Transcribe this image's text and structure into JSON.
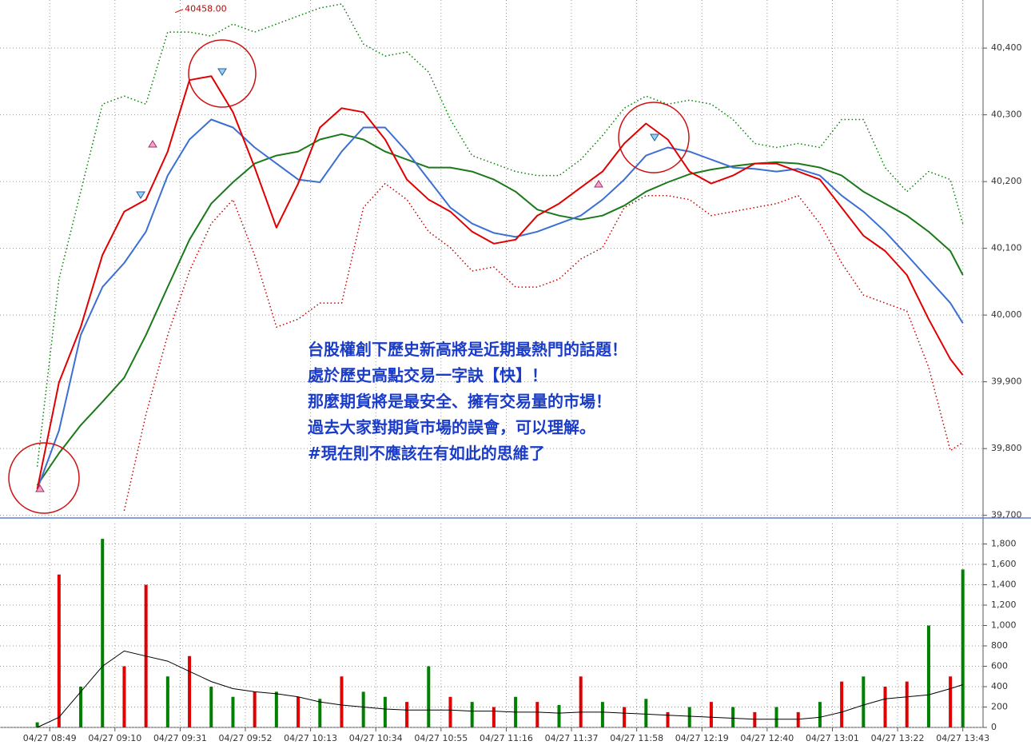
{
  "chart_data": [
    {
      "type": "line",
      "xlim": [
        "04/27 08:33",
        "04/27 13:49"
      ],
      "ylim": [
        39696,
        40472
      ],
      "yticks": [
        {
          "value": 39700,
          "label": "39,700"
        },
        {
          "value": 39800,
          "label": "39,800"
        },
        {
          "value": 39900,
          "label": "39,900"
        },
        {
          "value": 40000,
          "label": "40,000"
        },
        {
          "value": 40100,
          "label": "40,100"
        },
        {
          "value": 40200,
          "label": "40,200"
        },
        {
          "value": 40300,
          "label": "40,300"
        },
        {
          "value": 40400,
          "label": "40,400"
        }
      ],
      "grid": true,
      "x": [
        "04/27 08:45",
        "04/27 08:52",
        "04/27 08:59",
        "04/27 09:06",
        "04/27 09:13",
        "04/27 09:20",
        "04/27 09:27",
        "04/27 09:34",
        "04/27 09:41",
        "04/27 09:48",
        "04/27 09:55",
        "04/27 10:02",
        "04/27 10:09",
        "04/27 10:16",
        "04/27 10:23",
        "04/27 10:30",
        "04/27 10:37",
        "04/27 10:44",
        "04/27 10:51",
        "04/27 10:58",
        "04/27 11:05",
        "04/27 11:12",
        "04/27 11:19",
        "04/27 11:26",
        "04/27 11:33",
        "04/27 11:40",
        "04/27 11:47",
        "04/27 11:54",
        "04/27 12:01",
        "04/27 12:08",
        "04/27 12:15",
        "04/27 12:22",
        "04/27 12:29",
        "04/27 12:36",
        "04/27 12:43",
        "04/27 12:50",
        "04/27 12:57",
        "04/27 13:04",
        "04/27 13:11",
        "04/27 13:18",
        "04/27 13:25",
        "04/27 13:32",
        "04/27 13:39",
        "04/27 13:43"
      ],
      "series": [
        {
          "color": "#008000",
          "width": 2,
          "dotted": true,
          "values": [
            39773,
            40054,
            40185,
            40316,
            40328,
            40316,
            40424,
            40424,
            40418,
            40436,
            40424,
            40436,
            40448,
            40460,
            40466,
            40406,
            40388,
            40394,
            40364,
            40293,
            40239,
            40227,
            40215,
            40209,
            40209,
            40233,
            40269,
            40310,
            40328,
            40316,
            40322,
            40316,
            40293,
            40257,
            40251,
            40257,
            40251,
            40293,
            40293,
            40221,
            40185,
            40215,
            40203,
            40137
          ]
        },
        {
          "color": "#c00000",
          "width": 2,
          "dotted": true,
          "values": [
            null,
            null,
            null,
            null,
            39707,
            39851,
            39970,
            40066,
            40137,
            40173,
            40089,
            39982,
            39994,
            40018,
            40018,
            40161,
            40197,
            40173,
            40125,
            40101,
            40066,
            40072,
            40042,
            40042,
            40054,
            40084,
            40101,
            40161,
            40179,
            40179,
            40173,
            40149,
            40155,
            40161,
            40167,
            40179,
            40137,
            40078,
            40030,
            40018,
            40006,
            39922,
            39797,
            39809
          ]
        },
        {
          "color": "#1a7a1a",
          "width": 2,
          "dotted": false,
          "values": [
            39745,
            39793,
            39835,
            39870,
            39906,
            39970,
            40042,
            40113,
            40167,
            40199,
            40227,
            40239,
            40245,
            40263,
            40271,
            40263,
            40245,
            40233,
            40221,
            40221,
            40215,
            40203,
            40185,
            40158,
            40149,
            40143,
            40149,
            40164,
            40185,
            40199,
            40211,
            40218,
            40223,
            40227,
            40229,
            40227,
            40221,
            40209,
            40185,
            40167,
            40149,
            40125,
            40096,
            40060
          ]
        },
        {
          "color": "#3b6fd4",
          "width": 2,
          "dotted": false,
          "values": [
            39739,
            39827,
            39970,
            40042,
            40078,
            40125,
            40209,
            40263,
            40293,
            40281,
            40251,
            40227,
            40203,
            40199,
            40245,
            40281,
            40281,
            40245,
            40203,
            40161,
            40137,
            40123,
            40117,
            40125,
            40137,
            40149,
            40173,
            40203,
            40239,
            40251,
            40245,
            40233,
            40221,
            40219,
            40215,
            40219,
            40209,
            40179,
            40155,
            40125,
            40090,
            40054,
            40018,
            39988
          ]
        },
        {
          "color": "#e00000",
          "width": 2,
          "dotted": false,
          "values": [
            39739,
            39899,
            39982,
            40090,
            40155,
            40173,
            40245,
            40352,
            40358,
            40304,
            40221,
            40131,
            40197,
            40281,
            40310,
            40304,
            40263,
            40203,
            40173,
            40155,
            40125,
            40107,
            40113,
            40149,
            40167,
            40191,
            40215,
            40257,
            40287,
            40263,
            40215,
            40197,
            40209,
            40227,
            40227,
            40215,
            40203,
            40161,
            40119,
            40096,
            40060,
            39994,
            39934,
            39910
          ]
        }
      ],
      "high_label": {
        "value": 40458,
        "label": "40458.00",
        "x": "04/27 09:33"
      },
      "annotation_lines": [
        "台股權創下歷史新高將是近期最熱門的話題！",
        "處於歷史高點交易一字訣【快】！",
        "那麼期貨將是最安全、擁有交易量的市場！",
        "過去大家對期貨市場的誤會，可以理解。",
        "#現在則不應該在有如此的思維了"
      ],
      "annotation_color": "#1a3cc8"
    },
    {
      "type": "bar",
      "xlim": [
        "04/27 08:33",
        "04/27 13:49"
      ],
      "ylim": [
        0,
        2000
      ],
      "yticks": [
        0,
        200,
        400,
        600,
        800,
        {
          "value": 1000,
          "label": "1,000"
        },
        {
          "value": 1200,
          "label": "1,200"
        },
        {
          "value": 1400,
          "label": "1,400"
        },
        {
          "value": 1600,
          "label": "1,600"
        },
        {
          "value": 1800,
          "label": "1,800"
        }
      ],
      "xticks": [
        "04/27 08:49",
        "04/27 09:10",
        "04/27 09:31",
        "04/27 09:52",
        "04/27 10:13",
        "04/27 10:34",
        "04/27 10:55",
        "04/27 11:16",
        "04/27 11:37",
        "04/27 11:58",
        "04/27 12:19",
        "04/27 12:40",
        "04/27 13:01",
        "04/27 13:22",
        "04/27 13:43"
      ],
      "grid": true,
      "x": [
        "04/27 08:45",
        "04/27 08:52",
        "04/27 08:59",
        "04/27 09:06",
        "04/27 09:13",
        "04/27 09:20",
        "04/27 09:27",
        "04/27 09:34",
        "04/27 09:41",
        "04/27 09:48",
        "04/27 09:55",
        "04/27 10:02",
        "04/27 10:09",
        "04/27 10:16",
        "04/27 10:23",
        "04/27 10:30",
        "04/27 10:37",
        "04/27 10:44",
        "04/27 10:51",
        "04/27 10:58",
        "04/27 11:05",
        "04/27 11:12",
        "04/27 11:19",
        "04/27 11:26",
        "04/27 11:33",
        "04/27 11:40",
        "04/27 11:47",
        "04/27 11:54",
        "04/27 12:01",
        "04/27 12:08",
        "04/27 12:15",
        "04/27 12:22",
        "04/27 12:29",
        "04/27 12:36",
        "04/27 12:43",
        "04/27 12:50",
        "04/27 12:57",
        "04/27 13:04",
        "04/27 13:11",
        "04/27 13:18",
        "04/27 13:25",
        "04/27 13:32",
        "04/27 13:39",
        "04/27 13:43"
      ],
      "values": [
        50,
        1500,
        400,
        1850,
        600,
        1400,
        500,
        700,
        400,
        300,
        350,
        350,
        300,
        280,
        500,
        350,
        300,
        250,
        600,
        300,
        250,
        200,
        300,
        250,
        220,
        500,
        250,
        200,
        280,
        150,
        200,
        250,
        200,
        150,
        200,
        150,
        250,
        450,
        500,
        400,
        450,
        1000,
        500,
        1550
      ],
      "colors": [
        "#008000",
        "#e00000",
        "#008000",
        "#008000",
        "#e00000",
        "#e00000",
        "#008000",
        "#e00000",
        "#008000",
        "#008000",
        "#e00000",
        "#008000",
        "#e00000",
        "#008000",
        "#e00000",
        "#008000",
        "#008000",
        "#e00000",
        "#008000",
        "#e00000",
        "#008000",
        "#e00000",
        "#008000",
        "#e00000",
        "#008000",
        "#e00000",
        "#008000",
        "#e00000",
        "#008000",
        "#e00000",
        "#008000",
        "#e00000",
        "#008000",
        "#e00000",
        "#008000",
        "#e00000",
        "#008000",
        "#e00000",
        "#008000",
        "#e00000",
        "#e00000",
        "#008000",
        "#e00000",
        "#008000"
      ],
      "line": {
        "color": "#000000",
        "values": [
          0,
          100,
          350,
          600,
          750,
          700,
          650,
          550,
          450,
          380,
          350,
          330,
          300,
          250,
          220,
          200,
          180,
          170,
          170,
          170,
          160,
          160,
          150,
          150,
          140,
          150,
          150,
          140,
          130,
          120,
          110,
          100,
          90,
          80,
          80,
          80,
          100,
          150,
          220,
          280,
          300,
          320,
          380,
          420
        ]
      }
    }
  ]
}
